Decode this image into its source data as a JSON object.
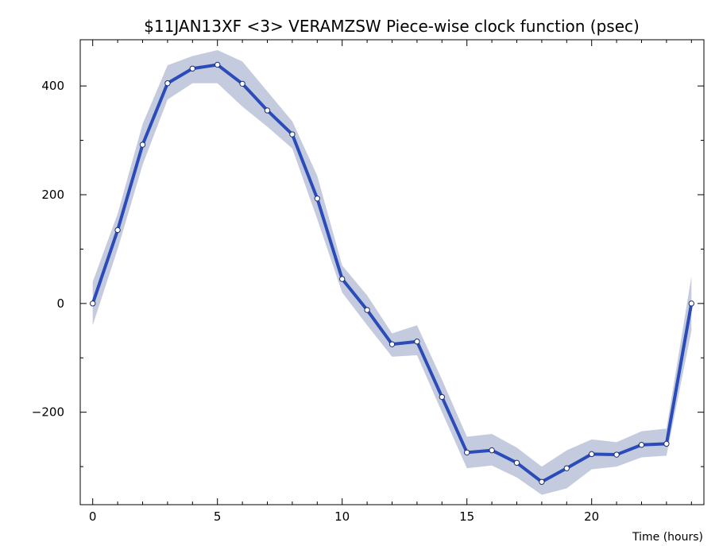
{
  "chart_data": {
    "type": "line",
    "title": "$11JAN13XF <3>  VERAMZSW  Piece-wise clock function (psec)",
    "xlabel": "Time (hours)",
    "ylabel": "",
    "xlim": [
      -0.5,
      24.5
    ],
    "ylim": [
      -370,
      485
    ],
    "x_ticks": [
      0,
      5,
      10,
      15,
      20
    ],
    "y_ticks": [
      -200,
      0,
      200,
      400
    ],
    "x_tick_labels": [
      "0",
      "5",
      "10",
      "15",
      "20"
    ],
    "y_tick_labels": [
      "−200",
      "0",
      "200",
      "400"
    ],
    "grid": false,
    "colors": {
      "line": "#2a4bb8",
      "band": "#c5cbdf",
      "marker_fill": "#ffffff",
      "axis": "#000000"
    },
    "series": [
      {
        "x": [
          0,
          1,
          2,
          3,
          4,
          5,
          6,
          7,
          8,
          9,
          10,
          11,
          12,
          13,
          14,
          15,
          16,
          17,
          18,
          19,
          20,
          21,
          22,
          23,
          24
        ],
        "values": [
          0,
          135,
          292,
          405,
          432,
          439,
          404,
          355,
          311,
          193,
          45,
          -12,
          -75,
          -70,
          -172,
          -274,
          -270,
          -293,
          -328,
          -303,
          -277,
          -278,
          -260,
          -258,
          0
        ],
        "upper": [
          40,
          165,
          330,
          438,
          455,
          466,
          445,
          390,
          335,
          235,
          70,
          15,
          -55,
          -40,
          -140,
          -245,
          -240,
          -265,
          -300,
          -270,
          -250,
          -255,
          -235,
          -230,
          50
        ],
        "lower": [
          -40,
          100,
          255,
          375,
          405,
          405,
          362,
          325,
          285,
          155,
          20,
          -40,
          -98,
          -95,
          -200,
          -303,
          -298,
          -320,
          -352,
          -340,
          -305,
          -300,
          -283,
          -280,
          -50
        ]
      }
    ]
  }
}
